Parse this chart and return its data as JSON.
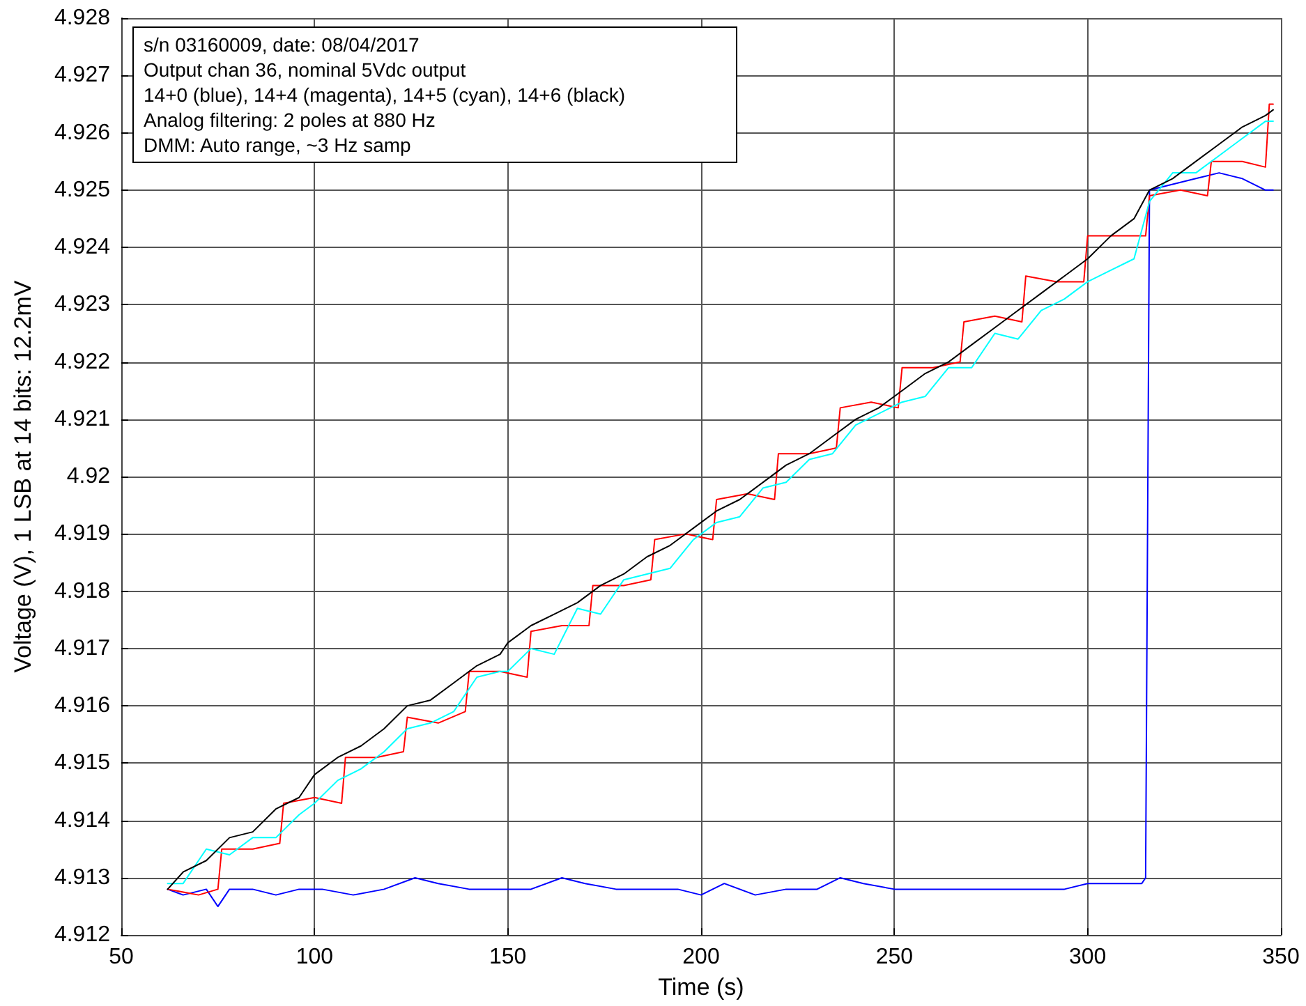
{
  "chart_data": {
    "type": "line",
    "xlabel": "Time (s)",
    "ylabel": "Voltage (V), 1 LSB at 14 bits: 12.2mV",
    "annotations": [
      "s/n 03160009, date: 08/04/2017",
      "Output chan 36, nominal 5Vdc output",
      "14+0 (blue), 14+4 (magenta), 14+5 (cyan), 14+6 (black)",
      "Analog filtering: 2 poles at 880 Hz",
      "DMM: Auto range, ~3 Hz samp"
    ],
    "xlim": [
      50,
      350
    ],
    "xticks": [
      50,
      100,
      150,
      200,
      250,
      300,
      350
    ],
    "ylim": [
      4.912,
      4.928
    ],
    "yticks": [
      4.912,
      4.913,
      4.914,
      4.915,
      4.916,
      4.917,
      4.918,
      4.919,
      4.92,
      4.921,
      4.922,
      4.923,
      4.924,
      4.925,
      4.926,
      4.927,
      4.928
    ],
    "grid": true,
    "marker": "none",
    "line_style": "solid",
    "series": [
      {
        "color": "#0000ff",
        "x": [
          62,
          66,
          72,
          75,
          78,
          84,
          90,
          96,
          102,
          110,
          118,
          126,
          132,
          140,
          148,
          156,
          164,
          170,
          178,
          186,
          194,
          200,
          206,
          214,
          222,
          230,
          236,
          242,
          250,
          256,
          262,
          270,
          278,
          286,
          294,
          300,
          308,
          314,
          315,
          316,
          322,
          328,
          334,
          340,
          346,
          348
        ],
        "values": [
          4.9128,
          4.9127,
          4.9128,
          4.9125,
          4.9128,
          4.9128,
          4.9127,
          4.9128,
          4.9128,
          4.9127,
          4.9128,
          4.913,
          4.9129,
          4.9128,
          4.9128,
          4.9128,
          4.913,
          4.9129,
          4.9128,
          4.9128,
          4.9128,
          4.9127,
          4.9129,
          4.9127,
          4.9128,
          4.9128,
          4.913,
          4.9129,
          4.9128,
          4.9128,
          4.9128,
          4.9128,
          4.9128,
          4.9128,
          4.9128,
          4.9129,
          4.9129,
          4.9129,
          4.913,
          4.925,
          4.9251,
          4.9252,
          4.9253,
          4.9252,
          4.925,
          4.925
        ]
      },
      {
        "color": "#ff0000",
        "x": [
          62,
          70,
          75,
          76,
          84,
          91,
          92,
          100,
          107,
          108,
          116,
          123,
          124,
          132,
          139,
          140,
          148,
          155,
          156,
          164,
          171,
          172,
          180,
          187,
          188,
          196,
          203,
          204,
          212,
          219,
          220,
          228,
          235,
          236,
          244,
          251,
          252,
          260,
          267,
          268,
          276,
          283,
          284,
          292,
          299,
          300,
          308,
          315,
          316,
          324,
          331,
          332,
          340,
          346,
          347,
          348
        ],
        "values": [
          4.9128,
          4.9127,
          4.9128,
          4.9135,
          4.9135,
          4.9136,
          4.9143,
          4.9144,
          4.9143,
          4.9151,
          4.9151,
          4.9152,
          4.9158,
          4.9157,
          4.9159,
          4.9166,
          4.9166,
          4.9165,
          4.9173,
          4.9174,
          4.9174,
          4.9181,
          4.9181,
          4.9182,
          4.9189,
          4.919,
          4.9189,
          4.9196,
          4.9197,
          4.9196,
          4.9204,
          4.9204,
          4.9205,
          4.9212,
          4.9213,
          4.9212,
          4.9219,
          4.9219,
          4.922,
          4.9227,
          4.9228,
          4.9227,
          4.9235,
          4.9234,
          4.9234,
          4.9242,
          4.9242,
          4.9242,
          4.9249,
          4.925,
          4.9249,
          4.9255,
          4.9255,
          4.9254,
          4.9265,
          4.9265
        ]
      },
      {
        "color": "#00ffff",
        "x": [
          62,
          66,
          72,
          78,
          84,
          90,
          96,
          100,
          106,
          112,
          118,
          124,
          130,
          136,
          142,
          148,
          150,
          156,
          162,
          168,
          174,
          180,
          186,
          192,
          198,
          204,
          210,
          216,
          222,
          228,
          234,
          240,
          246,
          252,
          258,
          264,
          270,
          276,
          282,
          288,
          294,
          300,
          306,
          312,
          316,
          322,
          328,
          334,
          340,
          346,
          348
        ],
        "values": [
          4.9129,
          4.9129,
          4.9135,
          4.9134,
          4.9137,
          4.9137,
          4.9141,
          4.9143,
          4.9147,
          4.9149,
          4.9152,
          4.9156,
          4.9157,
          4.9159,
          4.9165,
          4.9166,
          4.9166,
          4.917,
          4.9169,
          4.9177,
          4.9176,
          4.9182,
          4.9183,
          4.9184,
          4.9189,
          4.9192,
          4.9193,
          4.9198,
          4.9199,
          4.9203,
          4.9204,
          4.9209,
          4.9211,
          4.9213,
          4.9214,
          4.9219,
          4.9219,
          4.9225,
          4.9224,
          4.9229,
          4.9231,
          4.9234,
          4.9236,
          4.9238,
          4.9248,
          4.9253,
          4.9253,
          4.9256,
          4.9259,
          4.9262,
          4.9262
        ]
      },
      {
        "color": "#000000",
        "x": [
          62,
          66,
          72,
          78,
          84,
          90,
          96,
          100,
          106,
          112,
          118,
          124,
          130,
          136,
          142,
          148,
          150,
          156,
          162,
          168,
          174,
          180,
          186,
          192,
          198,
          204,
          210,
          216,
          222,
          228,
          234,
          240,
          246,
          252,
          258,
          264,
          270,
          276,
          282,
          288,
          294,
          300,
          306,
          312,
          316,
          322,
          328,
          334,
          340,
          346,
          348
        ],
        "values": [
          4.9128,
          4.9131,
          4.9133,
          4.9137,
          4.9138,
          4.9142,
          4.9144,
          4.9148,
          4.9151,
          4.9153,
          4.9156,
          4.916,
          4.9161,
          4.9164,
          4.9167,
          4.9169,
          4.9171,
          4.9174,
          4.9176,
          4.9178,
          4.9181,
          4.9183,
          4.9186,
          4.9188,
          4.9191,
          4.9194,
          4.9196,
          4.9199,
          4.9202,
          4.9204,
          4.9207,
          4.921,
          4.9212,
          4.9215,
          4.9218,
          4.922,
          4.9223,
          4.9226,
          4.9229,
          4.9232,
          4.9235,
          4.9238,
          4.9242,
          4.9245,
          4.925,
          4.9252,
          4.9255,
          4.9258,
          4.9261,
          4.9263,
          4.9264
        ]
      }
    ]
  }
}
